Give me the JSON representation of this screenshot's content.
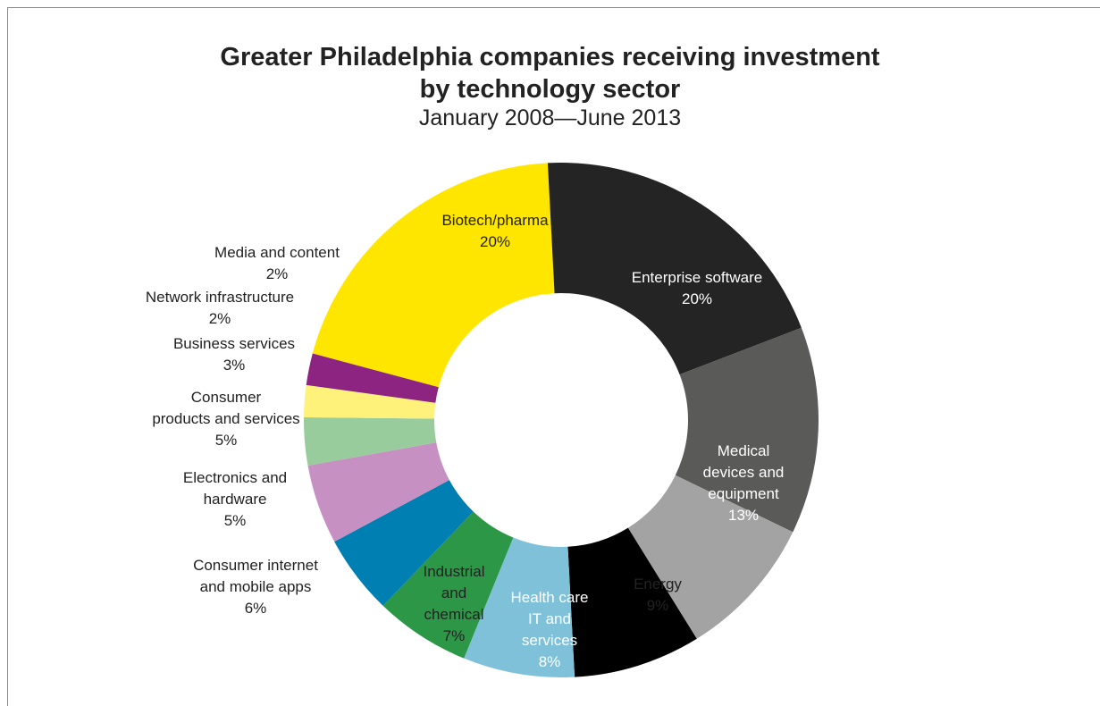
{
  "chart_data": {
    "type": "pie",
    "variant": "donut",
    "title_line1": "Greater Philadelphia companies receiving investment",
    "title_line2": "by technology sector",
    "subtitle": "January 2008—June 2013",
    "unit": "%",
    "slices": [
      {
        "label": "Biotech/pharma",
        "value": 20,
        "color": "#ffe600",
        "text_color": "#222222"
      },
      {
        "label": "Enterprise software",
        "value": 20,
        "color": "#242424",
        "text_color": "#ffffff"
      },
      {
        "label": "Medical devices and equipment",
        "value": 13,
        "color": "#5a5a59",
        "text_color": "#ffffff"
      },
      {
        "label": "Energy",
        "value": 9,
        "color": "#a3a3a3",
        "text_color": "#222222"
      },
      {
        "label": "Health care IT and services",
        "value": 8,
        "color": "#000000",
        "text_color": "#ffffff"
      },
      {
        "label": "Industrial and chemical",
        "value": 7,
        "color": "#7fc1d8",
        "text_color": "#222222"
      },
      {
        "label": "Consumer internet and mobile apps",
        "value": 6,
        "color": "#2c9746",
        "text_color": "#222222"
      },
      {
        "label": "Electronics and hardware",
        "value": 5,
        "color": "#0080b2",
        "text_color": "#222222"
      },
      {
        "label": "Consumer products and services",
        "value": 5,
        "color": "#c690c2",
        "text_color": "#222222"
      },
      {
        "label": "Business services",
        "value": 3,
        "color": "#99cc9c",
        "text_color": "#222222"
      },
      {
        "label": "Network infrastructure",
        "value": 2,
        "color": "#fff27a",
        "text_color": "#222222"
      },
      {
        "label": "Media and content",
        "value": 2,
        "color": "#8e2481",
        "text_color": "#222222"
      }
    ]
  }
}
